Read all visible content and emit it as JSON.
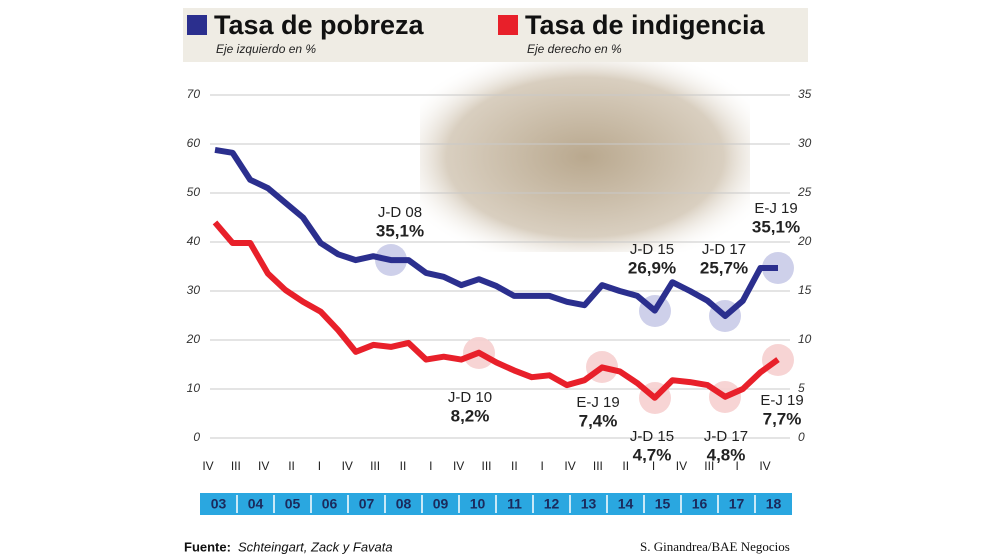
{
  "chart_data": {
    "type": "line",
    "series": [
      {
        "name": "Tasa de pobreza",
        "note": "Eje izquierdo en %",
        "color": "#2b2f8e",
        "axis": "y",
        "values": [
          58.8,
          58.2,
          52.7,
          51,
          48,
          45,
          39.8,
          37.5,
          36.3,
          37.1,
          36.3,
          36.3,
          33.7,
          32.9,
          31.2,
          32.4,
          31,
          29,
          29,
          29,
          27.8,
          27.1,
          31.2,
          30,
          29,
          26,
          31.8,
          30,
          28,
          24.9,
          28,
          34.7,
          34.7
        ]
      },
      {
        "name": "Tasa de indigencia",
        "note": "Eje derecho en %",
        "color": "#e8202a",
        "axis": "y2",
        "values": [
          22,
          19.9,
          19.9,
          16.8,
          15.1,
          13.9,
          12.9,
          11,
          8.8,
          9.5,
          9.3,
          9.7,
          8,
          8.3,
          8,
          8.7,
          7.7,
          6.9,
          6.2,
          6.4,
          5.4,
          5.9,
          7.2,
          6.8,
          5.6,
          4.1,
          5.9,
          5.7,
          5.4,
          4.2,
          5,
          6.7,
          8
        ]
      }
    ],
    "ylim": [
      0,
      70
    ],
    "yticks": [
      0,
      10,
      20,
      30,
      40,
      50,
      60,
      70
    ],
    "y2lim": [
      0,
      35
    ],
    "y2ticks": [
      0,
      5,
      10,
      15,
      20,
      25,
      30,
      35
    ],
    "grid": true,
    "quarter_labels": [
      "IV",
      "III",
      "IV",
      "II",
      "I",
      "IV",
      "III",
      "II",
      "I",
      "IV",
      "III",
      "II",
      "I",
      "IV",
      "III",
      "II",
      "I",
      "IV",
      "III",
      "I",
      "IV"
    ],
    "year_labels": [
      "03",
      "04",
      "05",
      "06",
      "07",
      "08",
      "09",
      "10",
      "11",
      "12",
      "13",
      "14",
      "15",
      "16",
      "17",
      "18"
    ],
    "annotations": [
      {
        "period": "J-D 08",
        "text": "35,1%"
      },
      {
        "period": "J-D 15",
        "text": "26,9%"
      },
      {
        "period": "J-D 17",
        "text": "25,7%"
      },
      {
        "period": "E-J 19",
        "text": "35,1%"
      },
      {
        "period": "J-D 10",
        "text": "8,2%"
      },
      {
        "period": "E-J 19",
        "text": "7,4%"
      },
      {
        "period": "J-D 15",
        "text": "4,7%"
      },
      {
        "period": "J-D 17",
        "text": "4,8%"
      },
      {
        "period": "E-J 19",
        "text": "7,7%"
      }
    ],
    "source_label": "Fuente:",
    "source": "Schteingart, Zack y Favata",
    "credit": "S. Ginandrea/BAE Negocios"
  }
}
